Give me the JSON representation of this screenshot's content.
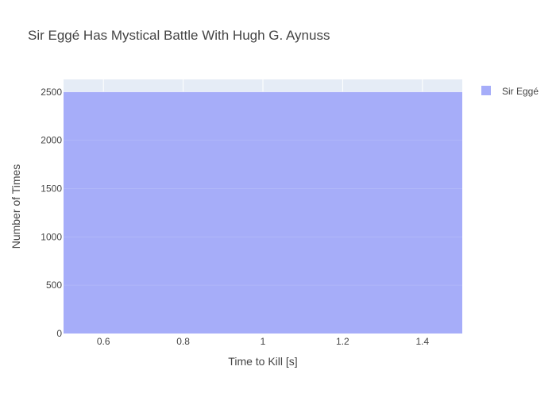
{
  "chart_data": {
    "type": "bar",
    "title": "Sir Eggé Has Mystical Battle With Hugh G. Aynuss",
    "xlabel": "Time to Kill [s]",
    "ylabel": "Number of Times",
    "xlim": [
      0.5,
      1.5
    ],
    "ylim": [
      0,
      2630
    ],
    "x_ticks": [
      0.6,
      0.8,
      1,
      1.2,
      1.4
    ],
    "x_tick_labels": [
      "0.6",
      "0.8",
      "1",
      "1.2",
      "1.4"
    ],
    "y_ticks": [
      0,
      500,
      1000,
      1500,
      2000,
      2500
    ],
    "y_tick_labels": [
      "0",
      "500",
      "1000",
      "1500",
      "2000",
      "2500"
    ],
    "bins": [
      {
        "x_start": 0.5,
        "x_end": 1.5,
        "value": 2500
      }
    ],
    "series": [
      {
        "name": "Sir Eggé",
        "color": "#a6adf9"
      }
    ],
    "grid": true,
    "legend_position": "top-right",
    "plot_background": "#e5ecf6"
  }
}
